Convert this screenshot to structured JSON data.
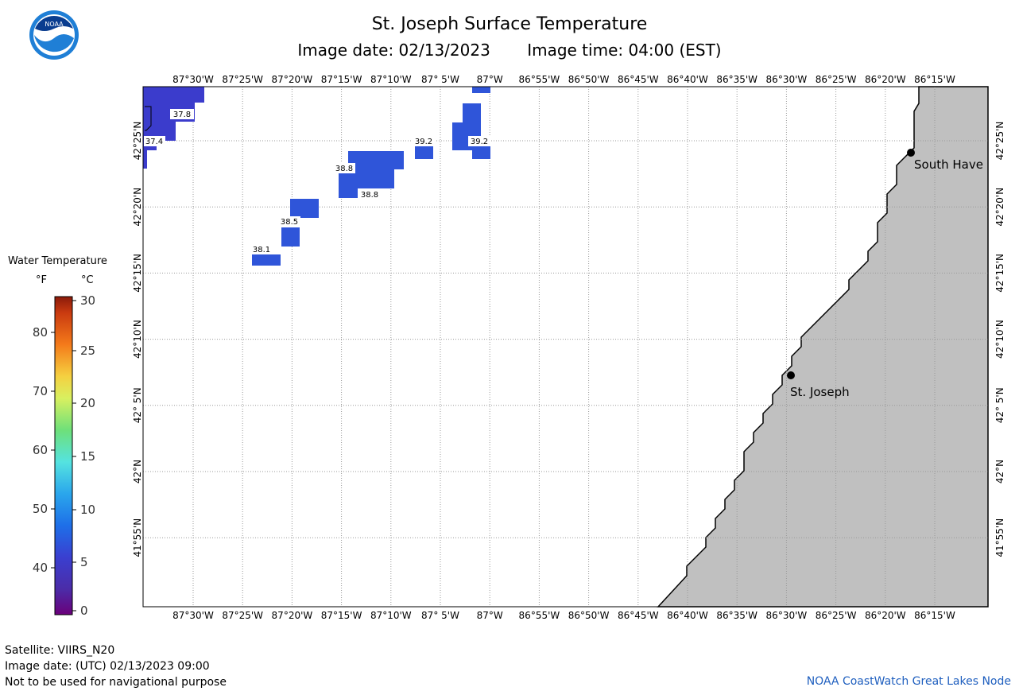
{
  "header": {
    "title": "St. Joseph Surface Temperature",
    "image_date": "Image date: 02/13/2023",
    "image_time": "Image time: 04:00 (EST)"
  },
  "logo": {
    "text": "NOAA",
    "icon": "noaa-logo-icon"
  },
  "legend": {
    "title": "Water Temperature",
    "unit_f": "°F",
    "unit_c": "°C",
    "f_ticks": [
      "80",
      "70",
      "60",
      "50",
      "40"
    ],
    "c_ticks": [
      "30",
      "25",
      "20",
      "15",
      "10",
      "5",
      "0"
    ]
  },
  "axes": {
    "lon_labels": [
      "87°30'W",
      "87°25'W",
      "87°20'W",
      "87°15'W",
      "87°10'W",
      "87° 5'W",
      "87°W",
      "86°55'W",
      "86°50'W",
      "86°45'W",
      "86°40'W",
      "86°35'W",
      "86°30'W",
      "86°25'W",
      "86°20'W",
      "86°15'W"
    ],
    "lat_labels": [
      "42°25'N",
      "42°20'N",
      "42°15'N",
      "42°10'N",
      "42° 5'N",
      "42°N",
      "41°55'N"
    ]
  },
  "temperature_labels": [
    "37.8",
    "37.4",
    "39.2",
    "39.2",
    "38.8",
    "38.8",
    "38.5",
    "38.1"
  ],
  "cities": {
    "south_haven": "South Have",
    "st_joseph": "St. Joseph"
  },
  "footer": {
    "satellite": "Satellite: VIIRS_N20",
    "utc_date": "Image date: (UTC) 02/13/2023  09:00",
    "disclaimer": "Not to be used for navigational purpose",
    "credit": "NOAA CoastWatch Great Lakes Node"
  },
  "colors": {
    "water_observed": "#2f55d9",
    "water_cold": "#3b3ccc",
    "land": "#c0c0c0",
    "credit": "#1f5fbf"
  }
}
